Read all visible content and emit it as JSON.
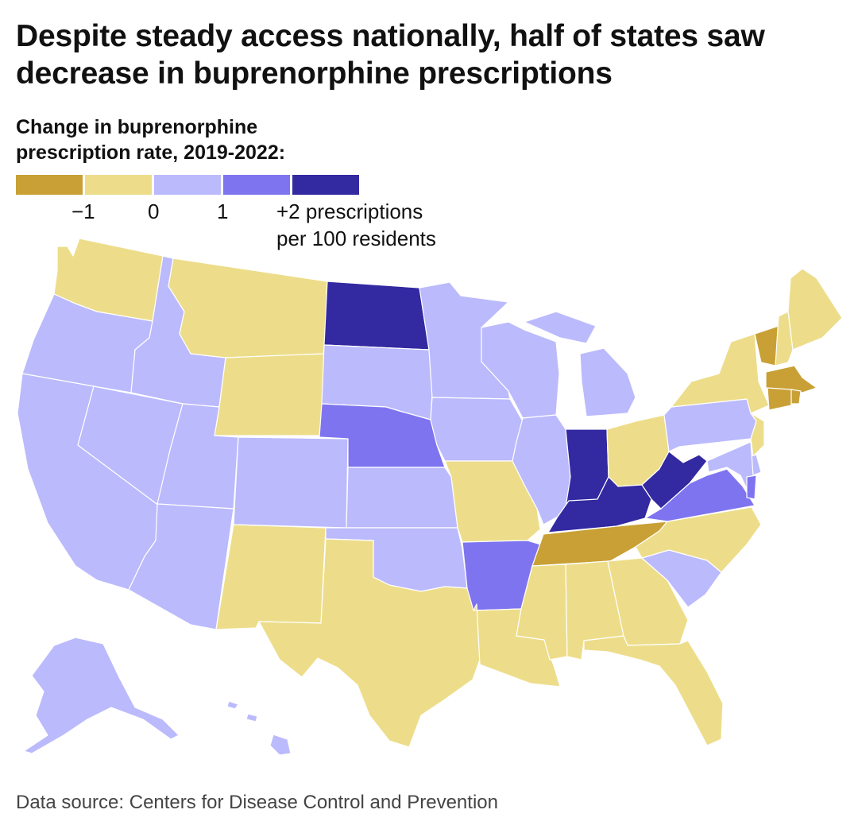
{
  "title": "Despite steady access nationally, half of states saw decrease in buprenorphine prescriptions",
  "legend": {
    "title_line1": "Change in buprenorphine",
    "title_line2": "prescription rate, 2019-2022:",
    "swatches": [
      "#c9a035",
      "#eddd8a",
      "#bbbafd",
      "#7f74ef",
      "#3329a0"
    ],
    "ticks": [
      "−1",
      "0",
      "1",
      "+2 prescriptions"
    ],
    "unit": "per 100 residents"
  },
  "colors": {
    "dec_large": "#c9a035",
    "dec_small": "#eddd8a",
    "inc_small": "#bbbafd",
    "inc_medium": "#7f74ef",
    "inc_large": "#3329a0",
    "border": "#ffffff"
  },
  "states": {
    "WA": "dec_small",
    "OR": "inc_small",
    "CA": "inc_small",
    "ID": "inc_small",
    "NV": "inc_small",
    "MT": "dec_small",
    "WY": "dec_small",
    "UT": "inc_small",
    "AZ": "inc_small",
    "CO": "inc_small",
    "NM": "dec_small",
    "ND": "inc_large",
    "SD": "inc_small",
    "NE": "inc_medium",
    "KS": "inc_small",
    "OK": "inc_small",
    "TX": "dec_small",
    "MN": "inc_small",
    "IA": "inc_small",
    "MO": "dec_small",
    "AR": "inc_medium",
    "LA": "dec_small",
    "WI": "inc_small",
    "IL": "inc_small",
    "MI": "inc_small",
    "IN": "inc_large",
    "OH": "dec_small",
    "KY": "inc_large",
    "TN": "dec_large",
    "MS": "dec_small",
    "AL": "dec_small",
    "GA": "dec_small",
    "FL": "dec_small",
    "SC": "inc_small",
    "NC": "dec_small",
    "VA": "inc_medium",
    "WV": "inc_large",
    "PA": "inc_small",
    "NY": "dec_small",
    "VT": "dec_large",
    "NH": "dec_small",
    "ME": "dec_small",
    "MA": "dec_large",
    "CT": "dec_large",
    "RI": "dec_large",
    "NJ": "dec_small",
    "DE": "inc_small",
    "MD": "inc_small",
    "DC": "inc_medium",
    "AK": "inc_small",
    "HI": "inc_small"
  },
  "source": "Data source: Centers for Disease Control and Prevention"
}
